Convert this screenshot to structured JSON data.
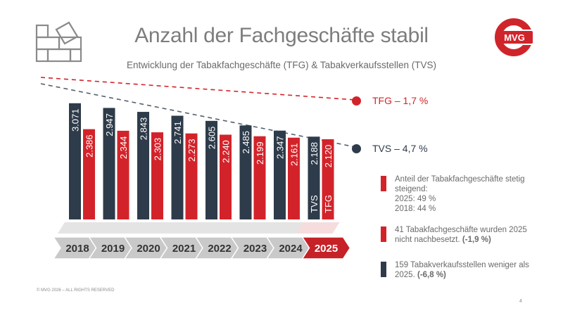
{
  "title": "Anzahl der Fachgeschäfte stabil",
  "subtitle": "Entwicklung der Tabakfachgeschäfte (TFG) & Tabakverkaufsstellen (TVS)",
  "logo": {
    "text": "MVG",
    "color": "#d0242b"
  },
  "colors": {
    "tvs": "#2e3b4a",
    "tfg": "#d3232a",
    "arrow_gray": "#c9c9c9",
    "arrow_active": "#c62127",
    "text_gray": "#6a6a6a"
  },
  "chart_data": {
    "type": "bar",
    "title": "Anzahl der Fachgeschäfte stabil",
    "subtitle": "Entwicklung der Tabakfachgeschäfte (TFG) & Tabakverkaufsstellen (TVS)",
    "categories": [
      "2018",
      "2019",
      "2020",
      "2021",
      "2022",
      "2023",
      "2024",
      "2025"
    ],
    "series": [
      {
        "name": "TVS",
        "values": [
          3071,
          2947,
          2843,
          2741,
          2605,
          2485,
          2347,
          2188
        ],
        "labels": [
          "3.071",
          "2.947",
          "2.843",
          "2.741",
          "2.605",
          "2.485",
          "2.347",
          "2.188"
        ]
      },
      {
        "name": "TFG",
        "values": [
          2386,
          2344,
          2303,
          2273,
          2240,
          2199,
          2161,
          2120
        ],
        "labels": [
          "2.386",
          "2.344",
          "2.303",
          "2.273",
          "2.240",
          "2.199",
          "2.161",
          "2.120"
        ]
      }
    ],
    "bar_series_labels_last": {
      "tvs": "TVS",
      "tfg": "TFG"
    },
    "trend_lines": [
      {
        "series": "TFG",
        "label": "TFG – 1,7 %"
      },
      {
        "series": "TVS",
        "label": "TVS – 4,7 %"
      }
    ],
    "ylim": [
      0,
      3400
    ],
    "xlabel": "",
    "ylabel": ""
  },
  "notes": [
    {
      "color": "tfg",
      "text": "Anteil der Tabakfachgeschäfte stetig steigend:",
      "line2": "2025: 49 %",
      "line3": "2018: 44 %",
      "bold": ""
    },
    {
      "color": "tfg",
      "text": "41 Tabakfachgeschäfte wurden 2025 nicht nachbesetzt.",
      "bold": "(-1,9 %)"
    },
    {
      "color": "tvs",
      "text": "159 Tabakverkaufsstellen weniger als 2025.",
      "bold": "(-6,8 %)"
    }
  ],
  "footer": "© MVG 2026 – ALL RIGHTS RESERVED",
  "page_number": "4"
}
